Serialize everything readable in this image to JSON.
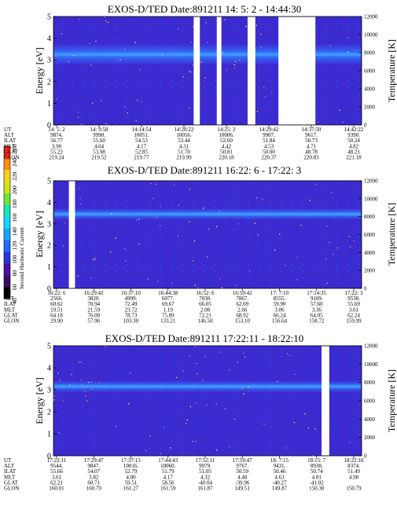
{
  "colorbar": {
    "label": "Second Harmonic Current",
    "ticks": [
      40,
      60,
      80,
      100,
      120,
      140,
      160,
      180,
      200,
      220,
      240,
      260
    ],
    "colors": [
      "#000000",
      "#3b0a66",
      "#4b11a5",
      "#2a35d8",
      "#1f6cff",
      "#16a6ff",
      "#14d6ff",
      "#19e6b0",
      "#6fe336",
      "#cfe51a",
      "#ffd21a",
      "#ff8a14",
      "#ff2a12"
    ]
  },
  "chart_data": [
    {
      "type": "heatmap",
      "title": "EXOS-D/TED   Date:891211   14: 5: 2 - 14:44:30",
      "ylabel": "Energy [eV]",
      "ylabel_right": "Temperature [K]",
      "ylim": [
        0,
        5
      ],
      "yticks": [
        0,
        1,
        2,
        3,
        4,
        5
      ],
      "ylim_right": [
        0,
        12000
      ],
      "yticks_right": [
        0,
        2000,
        4000,
        6000,
        8000,
        10000,
        12000
      ],
      "band_energy": [
        2.8,
        3.7
      ],
      "data_gaps_fraction": [
        [
          0.455,
          0.475
        ],
        [
          0.53,
          0.545
        ],
        [
          0.63,
          0.655
        ],
        [
          0.73,
          0.85
        ]
      ],
      "row_labels": [
        "UT",
        "ALT",
        "ILAT",
        "MLT",
        "GLAT",
        "GLON"
      ],
      "columns": [
        [
          "14: 5: 2",
          "9874.",
          "56.77",
          "3.90",
          "55.22",
          "219.24"
        ],
        [
          "14: 9:58",
          "9990.",
          "55.60",
          "4.04",
          "53.98",
          "219.52"
        ],
        [
          "14:14:54",
          "10051.",
          "54.53",
          "4.17",
          "52.85",
          "219.77"
        ],
        [
          "14:20:22",
          "10056.",
          "53.44",
          "4.31",
          "51.70",
          "219.99"
        ],
        [
          "14:25: 2",
          "10006.",
          "52.60",
          "4.42",
          "50.81",
          "220.18"
        ],
        [
          "14:29:42",
          "9907.",
          "51.84",
          "4.53",
          "50.00",
          "220.37"
        ],
        [
          "14:37:50",
          "9617.",
          "50.73",
          "4.71",
          "48.78",
          "220.83"
        ],
        [
          "14:42:22",
          "9390.",
          "50.24",
          "4.82",
          "48.21",
          "221.18"
        ]
      ]
    },
    {
      "type": "heatmap",
      "title": "EXOS-D/TED   Date:891211   16:22: 6 - 17:22: 3",
      "ylabel": "Energy [eV]",
      "ylabel_right": "Temperature [K]",
      "ylim": [
        0,
        5
      ],
      "yticks": [
        0,
        1,
        2,
        3,
        4,
        5
      ],
      "ylim_right": [
        0,
        12000
      ],
      "yticks_right": [
        0,
        2000,
        4000,
        6000,
        8000,
        10000,
        12000
      ],
      "band_energy": [
        3.2,
        3.7
      ],
      "data_gaps_fraction": [
        [
          0.05,
          0.07
        ]
      ],
      "row_labels": [
        "UT",
        "ALT",
        "ILAT",
        "MLT",
        "GLAT",
        "GLON"
      ],
      "columns": [
        [
          "16:22: 6",
          "2566.",
          "60.62",
          "19.51",
          "64.18",
          "29.90"
        ],
        [
          "16:29:42",
          "3820.",
          "70.94",
          "21.59",
          "76.00",
          "57.96"
        ],
        [
          "16:37:10",
          "4999.",
          "72.49",
          "23.72",
          "78.73",
          "103.30"
        ],
        [
          "16:44:38",
          "6077.",
          "69.67",
          "1.19",
          "75.89",
          "133.21"
        ],
        [
          "16:52: 6",
          "7030.",
          "66.05",
          "2.08",
          "72.21",
          "146.50"
        ],
        [
          "16:59:42",
          "7867.",
          "62.69",
          "2.66",
          "68.92",
          "153.10"
        ],
        [
          "17: 7:10",
          "8555.",
          "59.90",
          "3.06",
          "66.24",
          "156.64"
        ],
        [
          "17:14:35",
          "9109.",
          "57.60",
          "3.36",
          "64.05",
          "158.72"
        ],
        [
          "17:22: 3",
          "9538.",
          "55.69",
          "3.61",
          "62.24",
          "159.99"
        ]
      ]
    },
    {
      "type": "heatmap",
      "title": "EXOS-D/TED   Date:891211   17:22:11 - 18:22:10",
      "ylabel": "Energy [eV]",
      "ylabel_right": "Temperature [K]",
      "ylim": [
        0,
        5
      ],
      "yticks": [
        0,
        1,
        2,
        3,
        4,
        5
      ],
      "ylim_right": [
        0,
        12000
      ],
      "yticks_right": [
        0,
        2000,
        4000,
        6000,
        8000,
        10000,
        12000
      ],
      "band_energy": [
        2.9,
        3.4
      ],
      "data_gaps_fraction": [
        [
          0.87,
          0.895
        ]
      ],
      "row_labels": [
        "UT",
        "ALT",
        "ILAT",
        "MLT",
        "GLAT",
        "GLON"
      ],
      "columns": [
        [
          "17:22:11",
          "9544.",
          "55.66",
          "3.61",
          "62.21",
          "160.01"
        ],
        [
          "17:29:47",
          "9847.",
          "54.07",
          "3.82",
          "60.71",
          "160.79"
        ],
        [
          "17:37:15",
          "10016.",
          "52.79",
          "4.00",
          "59.51",
          "161.27"
        ],
        [
          "17:44:43",
          "10060.",
          "51.79",
          "4.17",
          "58.56",
          "161.59"
        ],
        [
          "17:52:11",
          "9979.",
          "51.05",
          "4.32",
          "-40.04",
          "161.87"
        ],
        [
          "17:59:47",
          "9767.",
          "50.59",
          "4.48",
          "-39.96",
          "149.51"
        ],
        [
          "18: 7:15",
          "9431.",
          "50.46",
          "4.63",
          "-40.27",
          "149.87"
        ],
        [
          "18:15: 7",
          "8938.",
          "50.74",
          "4.81",
          "-41.02",
          "150.30"
        ],
        [
          "18:22:10",
          "8374.",
          "51.49",
          "4.98",
          "",
          "150.79"
        ]
      ]
    }
  ]
}
